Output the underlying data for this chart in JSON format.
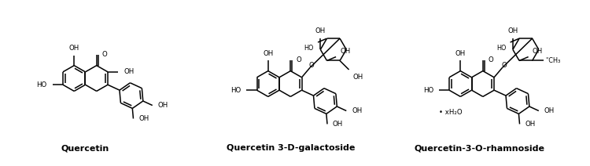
{
  "labels": [
    "Quercetin",
    "Quercetin 3-D-galactoside",
    "Quercetin-3-O-rhamnoside"
  ],
  "label_fontsize": 8,
  "label_fontweight": "bold",
  "background_color": "#ffffff",
  "figsize": [
    7.5,
    2.12
  ],
  "dpi": 100,
  "lw": 1.1,
  "fs": 6.2
}
